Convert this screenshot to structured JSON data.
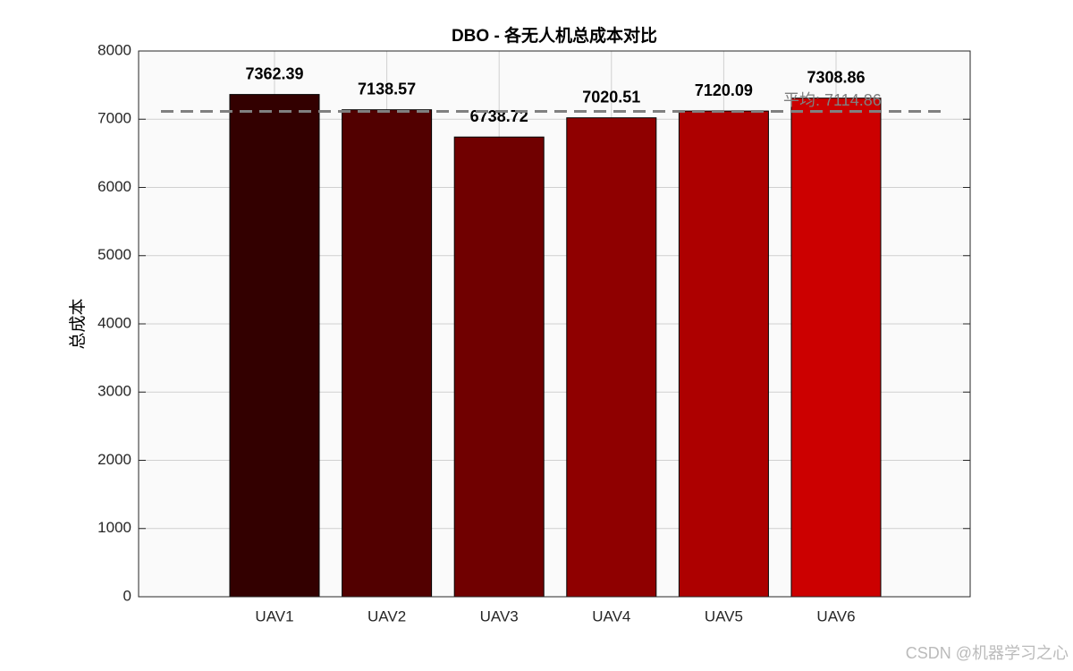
{
  "chart_data": {
    "type": "bar",
    "title": "DBO - 各无人机总成本对比",
    "y_label": "总成本",
    "categories": [
      "UAV1",
      "UAV2",
      "UAV3",
      "UAV4",
      "UAV5",
      "UAV6"
    ],
    "values": [
      7362.39,
      7138.57,
      6738.72,
      7020.51,
      7120.09,
      7308.86
    ],
    "colors": [
      "#330000",
      "#520000",
      "#700000",
      "#8f0000",
      "#ad0000",
      "#cc0000"
    ],
    "mean": {
      "value": 7114.86,
      "label": "平均: 7114.86"
    },
    "mean_color": "#808080",
    "ylim": [
      0,
      8000
    ],
    "yticks": [
      0,
      1000,
      2000,
      3000,
      4000,
      5000,
      6000,
      7000,
      8000
    ],
    "grid": true,
    "watermark": "CSDN @机器学习之心"
  }
}
